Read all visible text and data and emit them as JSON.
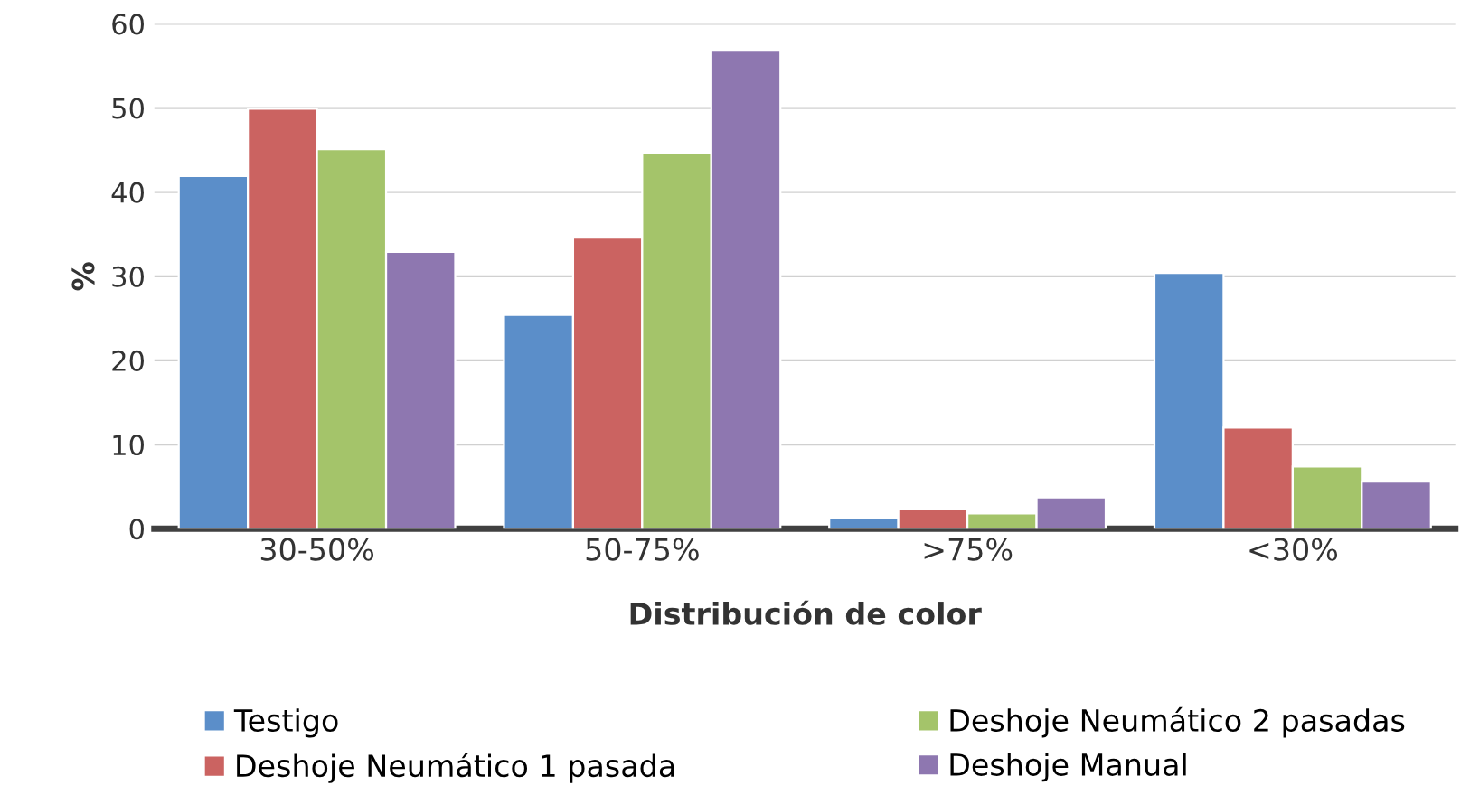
{
  "chart_data": {
    "type": "bar",
    "xlabel": "Distribución de color",
    "ylabel": "%",
    "categories": [
      "30-50%",
      "50-75%",
      ">75%",
      "<30%"
    ],
    "series": [
      {
        "name": "Testigo",
        "color": "#5b8ec9",
        "values": [
          41.9,
          25.4,
          1.3,
          30.4
        ]
      },
      {
        "name": "Deshoje Neumático 1 pasada",
        "color": "#cb6361",
        "values": [
          49.9,
          34.7,
          2.3,
          12.0
        ]
      },
      {
        "name": "Deshoje Neumático 2 pasadas",
        "color": "#a4c46a",
        "values": [
          45.1,
          44.6,
          1.8,
          7.4
        ]
      },
      {
        "name": "Deshoje Manual",
        "color": "#8e77b0",
        "values": [
          32.9,
          56.8,
          3.7,
          5.6
        ]
      }
    ],
    "ylim": [
      0,
      60
    ],
    "yticks": [
      0,
      10,
      20,
      30,
      40,
      50,
      60
    ],
    "grid": "y",
    "legend": "bottom"
  }
}
